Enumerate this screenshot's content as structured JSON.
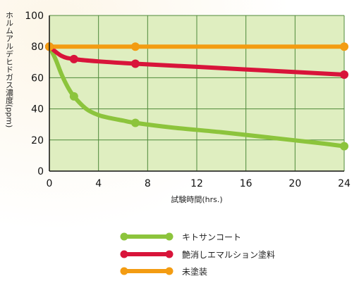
{
  "chart_data": {
    "type": "line",
    "xlabel": "試験時間(hrs.)",
    "ylabel": "ホルムアルデヒドガス濃度(ppm)",
    "xlim": [
      0,
      24
    ],
    "ylim": [
      0,
      100
    ],
    "x_ticks": [
      0,
      4,
      8,
      12,
      16,
      20,
      24
    ],
    "y_ticks": [
      0,
      20,
      40,
      60,
      80,
      100
    ],
    "grid": true,
    "legend_position": "bottom",
    "plot_background": "#dfeec0",
    "grid_color": "#4f8a3a",
    "series": [
      {
        "name": "キトサンコート",
        "color": "#8cc43c",
        "marker_x": [
          0,
          2,
          7,
          24
        ],
        "marker_y": [
          80,
          48,
          31,
          16
        ],
        "curve_x": [
          0,
          0.5,
          1,
          1.5,
          2,
          3,
          4,
          5,
          6,
          7,
          10,
          14,
          18,
          22,
          24
        ],
        "curve_y": [
          80,
          72,
          62,
          54,
          48,
          40,
          36,
          34,
          32.5,
          31,
          28,
          25,
          21.5,
          18,
          16
        ]
      },
      {
        "name": "艶消しエマルション塗料",
        "color": "#d8143a",
        "marker_x": [
          0,
          2,
          7,
          24
        ],
        "marker_y": [
          80,
          72,
          69,
          62
        ],
        "curve_x": [
          0,
          1,
          2,
          4,
          7,
          12,
          18,
          24
        ],
        "curve_y": [
          80,
          74,
          72,
          70.5,
          69,
          67,
          64.5,
          62
        ]
      },
      {
        "name": "未塗装",
        "color": "#f39c12",
        "marker_x": [
          0,
          7,
          24
        ],
        "marker_y": [
          80,
          80,
          80
        ],
        "curve_x": [
          0,
          24
        ],
        "curve_y": [
          80,
          80
        ]
      }
    ]
  }
}
